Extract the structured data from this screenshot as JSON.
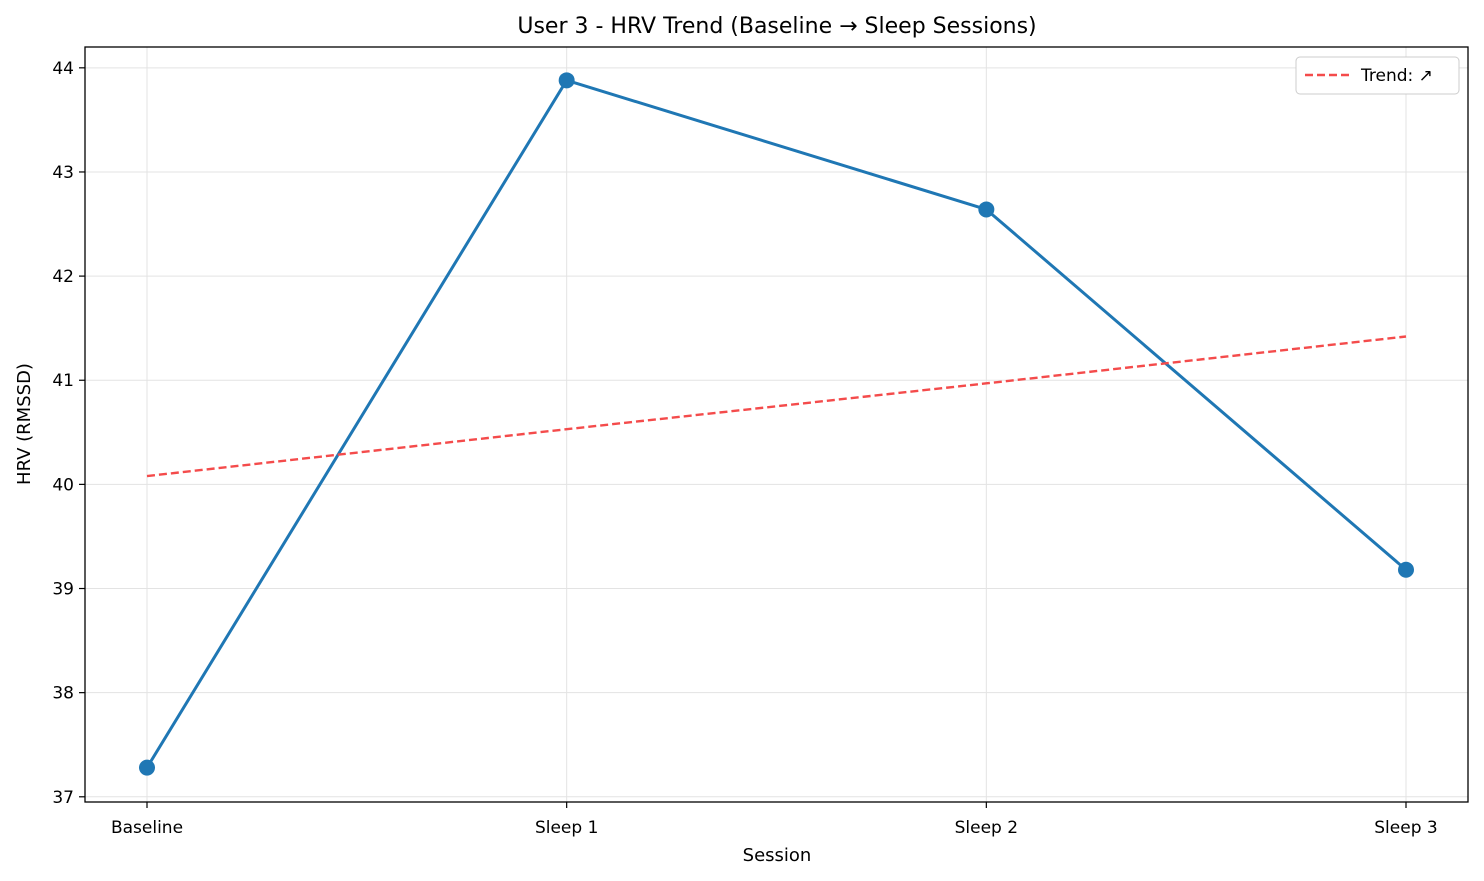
{
  "chart_data": {
    "type": "line",
    "title": "User 3 - HRV Trend (Baseline → Sleep Sessions)",
    "xlabel": "Session",
    "ylabel": "HRV (RMSSD)",
    "categories": [
      "Baseline",
      "Sleep 1",
      "Sleep 2",
      "Sleep 3"
    ],
    "ylim": [
      36.95,
      44.2
    ],
    "yticks": [
      37,
      38,
      39,
      40,
      41,
      42,
      43,
      44
    ],
    "grid": true,
    "legend_position": "top-right",
    "series": [
      {
        "values": [
          37.28,
          43.88,
          42.64,
          39.18
        ],
        "color": "#1f77b4",
        "style": "solid",
        "marker": "circle"
      },
      {
        "name": "Trend: ↗",
        "values": [
          40.08,
          40.53,
          40.97,
          41.42
        ],
        "color": "#f44b4b",
        "style": "dashed",
        "marker": "none"
      }
    ]
  }
}
